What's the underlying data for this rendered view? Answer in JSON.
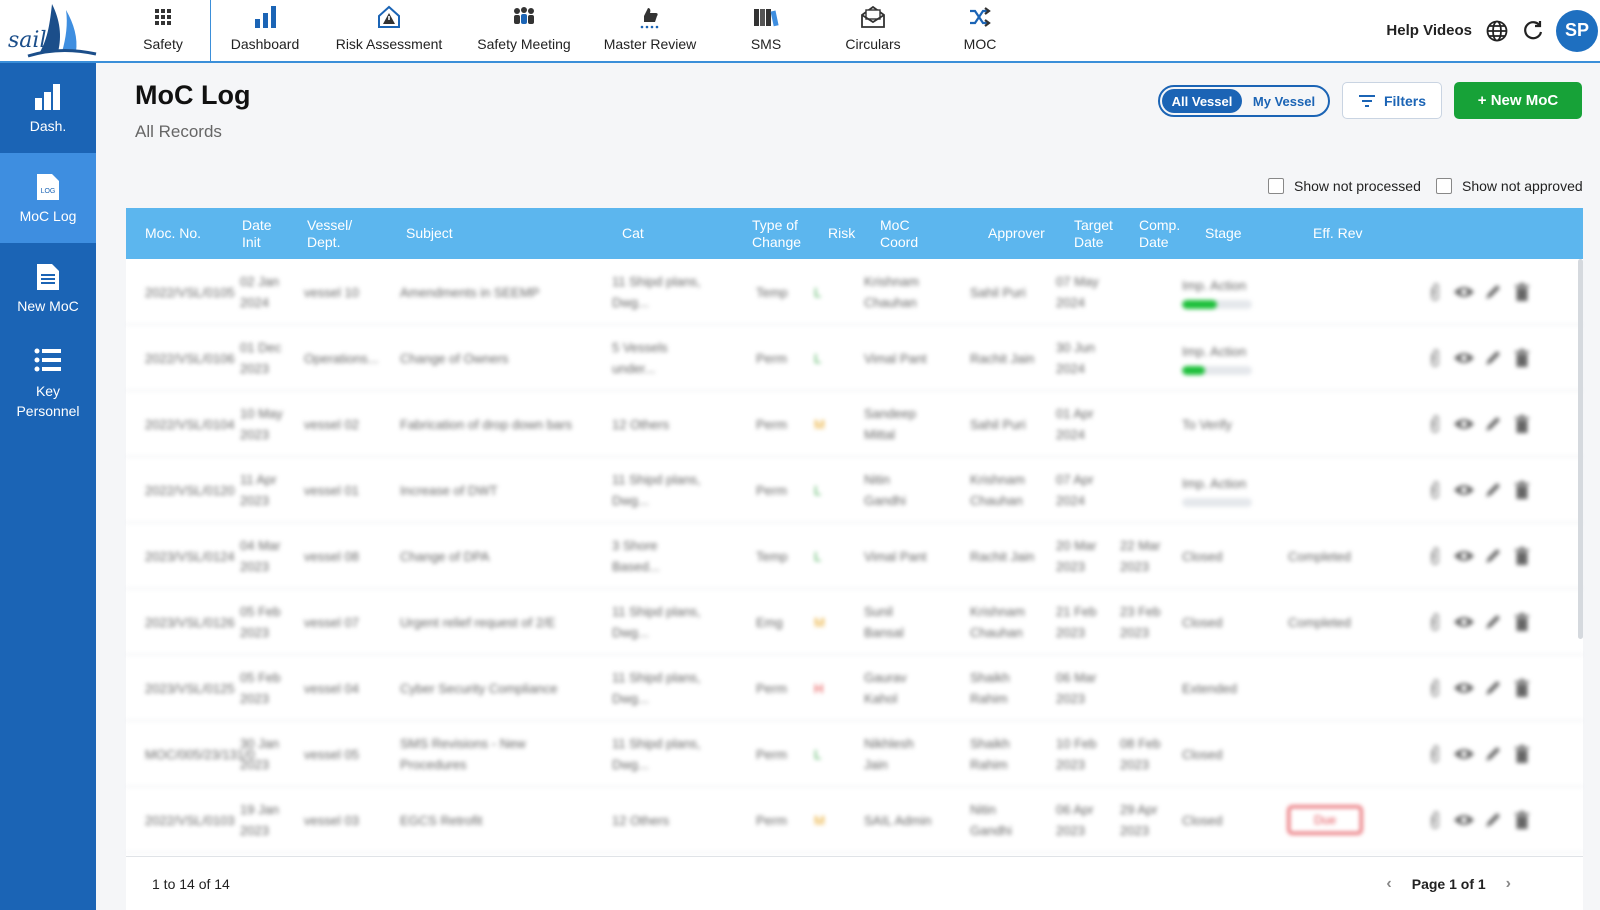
{
  "logo": {
    "text": "sail"
  },
  "nav": {
    "items": [
      {
        "label": "Safety",
        "icon": "grid-icon"
      },
      {
        "label": "Dashboard",
        "icon": "bar-chart-icon"
      },
      {
        "label": "Risk Assessment",
        "icon": "warning-house-icon"
      },
      {
        "label": "Safety Meeting",
        "icon": "group-icon"
      },
      {
        "label": "Master Review",
        "icon": "thumbs-up-icon"
      },
      {
        "label": "SMS",
        "icon": "books-icon"
      },
      {
        "label": "Circulars",
        "icon": "envelope-icon"
      },
      {
        "label": "MOC",
        "icon": "shuffle-icon"
      }
    ],
    "help_label": "Help Videos",
    "avatar_initials": "SP"
  },
  "sidebar": {
    "items": [
      {
        "label": "Dash.",
        "icon": "bar-chart-icon"
      },
      {
        "label": "MoC Log",
        "icon": "log-file-icon",
        "active": true
      },
      {
        "label": "New MoC",
        "icon": "document-icon"
      },
      {
        "label": "Key Personnel",
        "icon": "list-icon"
      }
    ]
  },
  "header": {
    "title": "MoC Log",
    "subtitle": "All Records",
    "toggle_all": "All Vessel",
    "toggle_my": "My Vessel",
    "filters_label": "Filters",
    "new_moc_label": "+ New MoC",
    "show_not_processed": "Show not processed",
    "show_not_approved": "Show not approved"
  },
  "table": {
    "columns": {
      "moc_no": "Moc. No.",
      "date_init": "Date Init",
      "vessel": "Vessel/ Dept.",
      "subject": "Subject",
      "cat": "Cat",
      "type": "Type of Change",
      "risk": "Risk",
      "coord": "MoC Coord",
      "approver": "Approver",
      "target": "Target Date",
      "comp": "Comp. Date",
      "stage": "Stage",
      "effrev": "Eff. Rev"
    },
    "rows": [
      {
        "moc_no": "2022/VSL/0105",
        "date_init": "02 Jan 2024",
        "vessel": "vessel 10",
        "subject": "Amendments in SEEMP",
        "cat": "11 Shipd plans, Dwg...",
        "type": "Temp",
        "risk": "L",
        "coord": "Krishnam Chauhan",
        "approver": "Sahil Puri",
        "target": "07 May 2024",
        "comp": "",
        "stage": "Imp. Action",
        "progress": 0.5,
        "effrev": ""
      },
      {
        "moc_no": "2022/VSL/0106",
        "date_init": "01 Dec 2023",
        "vessel": "Operations...",
        "subject": "Change of Owners",
        "cat": "5 Vessels under...",
        "type": "Perm",
        "risk": "L",
        "coord": "Vimal Pant",
        "approver": "Rachit Jain",
        "target": "30 Jun 2024",
        "comp": "",
        "stage": "Imp. Action",
        "progress": 0.33,
        "effrev": ""
      },
      {
        "moc_no": "2022/VSL/0104",
        "date_init": "10 May 2023",
        "vessel": "vessel 02",
        "subject": "Fabrication of drop down bars",
        "cat": "12 Others",
        "type": "Perm",
        "risk": "M",
        "coord": "Sandeep Mittal",
        "approver": "Sahil Puri",
        "target": "01 Apr 2024",
        "comp": "",
        "stage": "To Verify",
        "effrev": ""
      },
      {
        "moc_no": "2022/VSL/0120",
        "date_init": "11 Apr 2023",
        "vessel": "vessel 01",
        "subject": "Increase of DWT",
        "cat": "11 Shipd plans, Dwg...",
        "type": "Perm",
        "risk": "L",
        "coord": "Nitin Gandhi",
        "approver": "Krishnam Chauhan",
        "target": "07 Apr 2024",
        "comp": "",
        "stage": "Imp. Action",
        "progress": 0,
        "effrev": ""
      },
      {
        "moc_no": "2023/VSL/0124",
        "date_init": "04 Mar 2023",
        "vessel": "vessel 08",
        "subject": "Change of DPA",
        "cat": "3 Shore Based...",
        "type": "Temp",
        "risk": "L",
        "coord": "Vimal Pant",
        "approver": "Rachit Jain",
        "target": "20 Mar 2023",
        "comp": "22 Mar 2023",
        "stage": "Closed",
        "effrev": "Completed"
      },
      {
        "moc_no": "2023/VSL/0126",
        "date_init": "05 Feb 2023",
        "vessel": "vessel 07",
        "subject": "Urgent relief request of 2/E",
        "cat": "11 Shipd plans, Dwg...",
        "type": "Emg",
        "risk": "M",
        "coord": "Sunil Bansal",
        "approver": "Krishnam Chauhan",
        "target": "21 Feb 2023",
        "comp": "23 Feb 2023",
        "stage": "Closed",
        "effrev": "Completed"
      },
      {
        "moc_no": "2023/VSL/0125",
        "date_init": "05 Feb 2023",
        "vessel": "vessel 04",
        "subject": "Cyber Security Compliance",
        "cat": "11 Shipd plans, Dwg...",
        "type": "Perm",
        "risk": "H",
        "coord": "Gaurav Kahol",
        "approver": "Shaikh Rahim",
        "target": "06 Mar 2023",
        "comp": "",
        "stage": "Extended",
        "effrev": ""
      },
      {
        "moc_no": "MOC/005/23/131/0",
        "date_init": "30 Jan 2023",
        "vessel": "vessel 05",
        "subject": "SMS Revisions - New Procedures",
        "cat": "11 Shipd plans, Dwg...",
        "type": "Perm",
        "risk": "L",
        "coord": "Nikhlesh Jain",
        "approver": "Shaikh Rahim",
        "target": "10 Feb 2023",
        "comp": "08 Feb 2023",
        "stage": "Closed",
        "effrev": ""
      },
      {
        "moc_no": "2022/VSL/0103",
        "date_init": "19 Jan 2023",
        "vessel": "vessel 03",
        "subject": "EGCS Retrofit",
        "cat": "12 Others",
        "type": "Perm",
        "risk": "M",
        "coord": "SAIL Admin",
        "approver": "Nitin Gandhi",
        "target": "06 Apr 2023",
        "comp": "29 Apr 2023",
        "stage": "Closed",
        "effrev": "Due"
      }
    ],
    "footer_range": "1 to 14 of 14",
    "footer_page": "Page 1 of 1"
  },
  "colors": {
    "brand_blue": "#1b64b5",
    "header_blue": "#5cb6ee",
    "green": "#17a238",
    "due_red": "#e2474f"
  }
}
